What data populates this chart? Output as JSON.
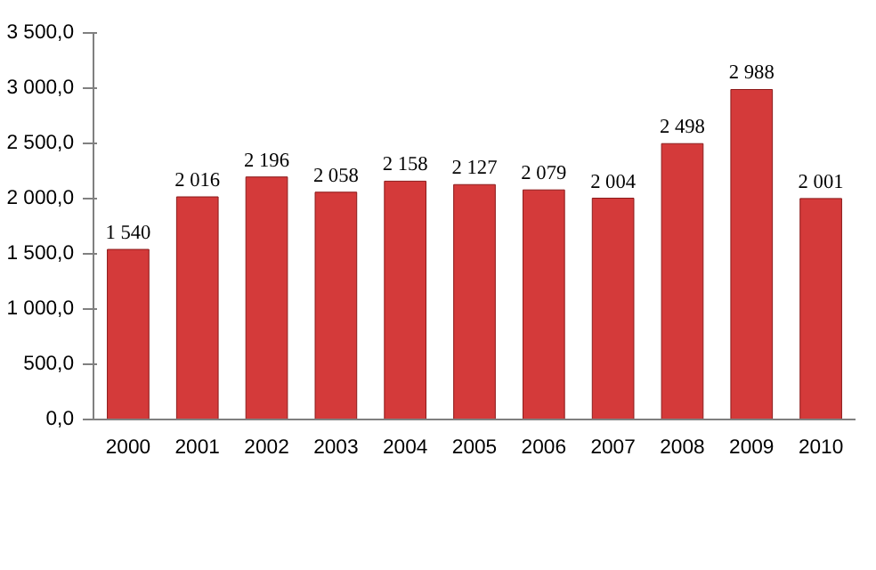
{
  "chart_data": {
    "type": "bar",
    "categories": [
      "2000",
      "2001",
      "2002",
      "2003",
      "2004",
      "2005",
      "2006",
      "2007",
      "2008",
      "2009",
      "2010"
    ],
    "values": [
      1540,
      2016,
      2196,
      2058,
      2158,
      2127,
      2079,
      2004,
      2498,
      2988,
      2001
    ],
    "value_labels": [
      "1 540",
      "2 016",
      "2 196",
      "2 058",
      "2 158",
      "2 127",
      "2 079",
      "2 004",
      "2 498",
      "2 988",
      "2 001"
    ],
    "color": "#d43a3a",
    "ylim": [
      0,
      3500
    ],
    "yticks": [
      {
        "value": 0,
        "label": "0,0"
      },
      {
        "value": 500,
        "label": "500,0"
      },
      {
        "value": 1000,
        "label": "1 000,0"
      },
      {
        "value": 1500,
        "label": "1 500,0"
      },
      {
        "value": 2000,
        "label": "2 000,0"
      },
      {
        "value": 2500,
        "label": "2 500,0"
      },
      {
        "value": 3000,
        "label": "3 000,0"
      },
      {
        "value": 3500,
        "label": "3 500,0"
      }
    ],
    "grid": false
  }
}
